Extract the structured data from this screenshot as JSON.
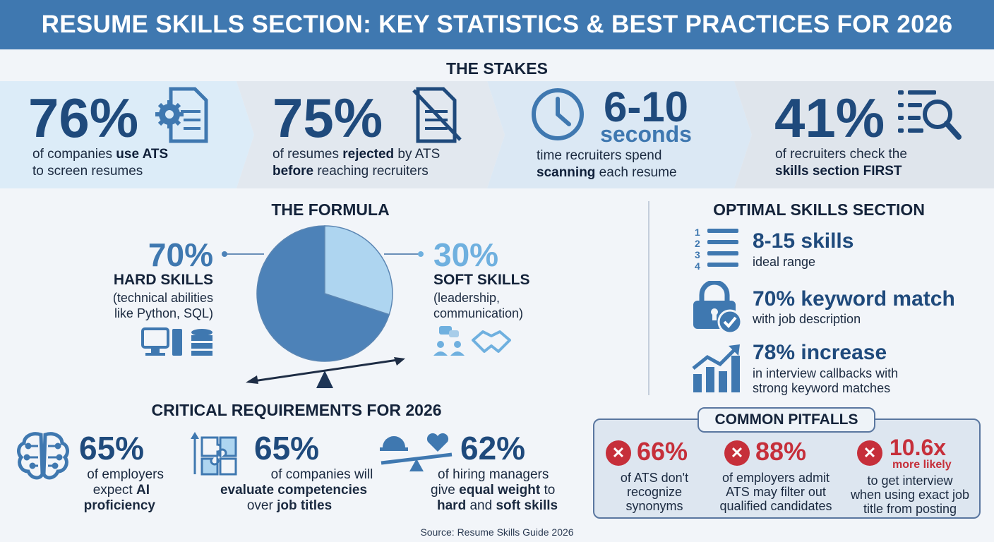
{
  "header": {
    "title": "RESUME SKILLS SECTION: KEY STATISTICS & BEST PRACTICES FOR 2026"
  },
  "stakes": {
    "title": "THE STAKES",
    "items": [
      {
        "value": "76%",
        "line1_pre": "of companies ",
        "line1_bold": "use ATS",
        "line2": "to screen resumes",
        "icon": "document-gear-icon"
      },
      {
        "value": "75%",
        "line1_pre": "of resumes ",
        "line1_bold": "rejected",
        "line1_post": " by ATS",
        "line2_bold": "before",
        "line2_post": " reaching recruiters",
        "icon": "crossed-document-icon"
      },
      {
        "value": "6-10",
        "unit": "seconds",
        "line1": "time recruiters spend",
        "line2_bold": "scanning",
        "line2_post": " each resume",
        "icon": "clock-icon"
      },
      {
        "value": "41%",
        "line1": "of recruiters check the",
        "line2_bold": "skills section FIRST",
        "icon": "list-magnifier-icon"
      }
    ]
  },
  "formula": {
    "title": "THE FORMULA",
    "hard": {
      "value": "70%",
      "label": "HARD SKILLS",
      "desc1": "(technical abilities",
      "desc2": "like Python, SQL)"
    },
    "soft": {
      "value": "30%",
      "label": "SOFT SKILLS",
      "desc1": "(leadership,",
      "desc2": "communication)"
    }
  },
  "optimal": {
    "title": "OPTIMAL SKILLS SECTION",
    "items": [
      {
        "value": "8-15 skills",
        "desc1": "ideal range",
        "icon": "numbered-list-icon"
      },
      {
        "value": "70% keyword match",
        "desc1": "with job description",
        "icon": "padlock-check-icon"
      },
      {
        "value": "78% increase",
        "desc1": "in interview callbacks with",
        "desc2": "strong keyword matches",
        "icon": "growth-chart-icon"
      }
    ]
  },
  "critical": {
    "title": "CRITICAL REQUIREMENTS FOR 2026",
    "items": [
      {
        "value": "65%",
        "line1": "of employers",
        "line2_pre": "expect ",
        "line2_bold": "AI",
        "line3_bold": "proficiency",
        "icon": "brain-circuit-icon"
      },
      {
        "value": "65%",
        "line1": "of companies will",
        "line2_bold": "evaluate competencies",
        "line3_pre": "over ",
        "line3_bold": "job titles",
        "icon": "puzzle-icon"
      },
      {
        "value": "62%",
        "line1": "of hiring managers",
        "line2_pre": "give ",
        "line2_bold": "equal weight",
        "line2_post": " to",
        "line3_bold": "hard",
        "line3_mid": " and ",
        "line3_bold2": "soft skills",
        "icon": "balance-icon"
      }
    ]
  },
  "pitfalls": {
    "title": "COMMON PITFALLS",
    "items": [
      {
        "value": "66%",
        "line1": "of ATS don't",
        "line2": "recognize",
        "line3": "synonyms"
      },
      {
        "value": "88%",
        "line1": "of employers admit",
        "line2": "ATS may filter out",
        "line3": "qualified candidates"
      },
      {
        "value": "10.6x",
        "sub": "more likely",
        "line1": "to get interview",
        "line2": "when using exact job",
        "line3": "title from posting"
      }
    ]
  },
  "source": "Source: Resume Skills Guide 2026",
  "colors": {
    "header": "#3f78b0",
    "navy": "#1f4a7c",
    "pie_hard": "#4d82b8",
    "pie_soft": "#aed5f0",
    "red": "#c62f3a"
  },
  "chart_data": {
    "type": "pie",
    "categories": [
      "HARD SKILLS",
      "SOFT SKILLS"
    ],
    "values": [
      70,
      30
    ]
  }
}
